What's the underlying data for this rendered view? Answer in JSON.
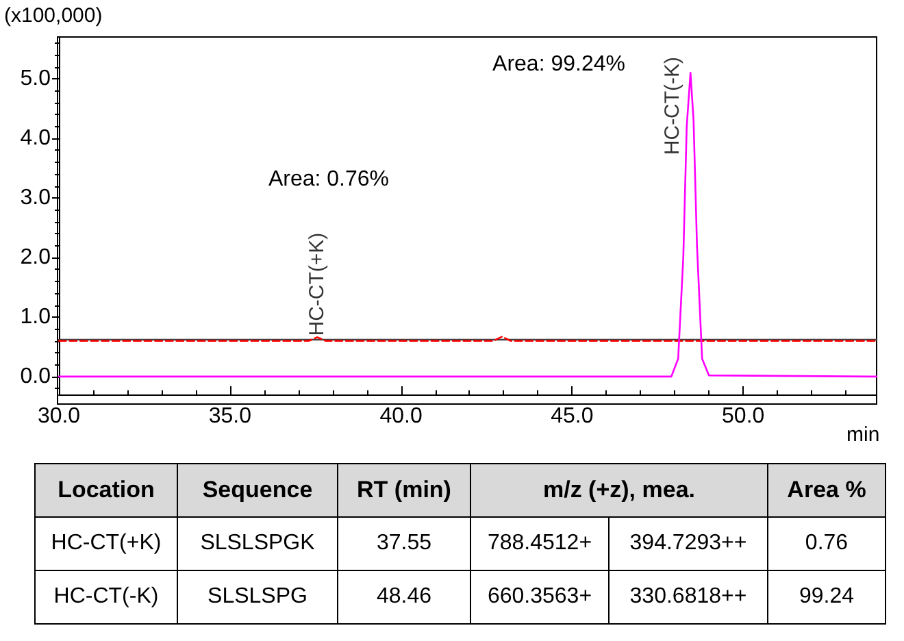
{
  "chart_data": [
    {
      "type": "line",
      "xlabel": "min",
      "ylabel": "(x100,000)",
      "xlim": [
        30,
        53.9
      ],
      "ylim": [
        -0.3,
        5.7
      ],
      "xticks": [
        {
          "value": 30,
          "label": "30.0"
        },
        {
          "value": 35,
          "label": "35.0"
        },
        {
          "value": 40,
          "label": "40.0"
        },
        {
          "value": 45,
          "label": "45.0"
        },
        {
          "value": 50,
          "label": "50.0"
        }
      ],
      "yticks": [
        {
          "value": 0,
          "label": "0.0"
        },
        {
          "value": 1,
          "label": "1.0"
        },
        {
          "value": 2,
          "label": "2.0"
        },
        {
          "value": 3,
          "label": "3.0"
        },
        {
          "value": 4,
          "label": "4.0"
        },
        {
          "value": 5,
          "label": "5.0"
        }
      ],
      "series": [
        {
          "color": "#404040",
          "line_style": "solid",
          "x": [
            30,
            53.9
          ],
          "values": [
            0.62,
            0.62
          ]
        },
        {
          "color": "#ff0000",
          "line_style": "dashed",
          "x": [
            30,
            37.3,
            37.55,
            37.8,
            42.7,
            42.95,
            43.2,
            53.9
          ],
          "values": [
            0.6,
            0.6,
            0.66,
            0.6,
            0.6,
            0.67,
            0.6,
            0.6
          ]
        },
        {
          "color": "#ff00ff",
          "line_style": "solid",
          "x": [
            30,
            47.9,
            48.1,
            48.25,
            48.35,
            48.46,
            48.55,
            48.65,
            48.8,
            49.0,
            53.9
          ],
          "values": [
            0,
            0,
            0.3,
            2.0,
            4.2,
            5.1,
            4.3,
            2.2,
            0.3,
            0.02,
            0
          ]
        }
      ],
      "annotations": [
        "Area: 0.76%",
        {
          "text": "HC-CT(+K)",
          "x": 37.55,
          "y": 0.66
        },
        "Area: 99.24%",
        {
          "text": "HC-CT(-K)",
          "x": 48.46,
          "y": 5.1
        }
      ],
      "grid": false,
      "marker": "none"
    },
    {
      "type": "other",
      "categories": [
        "Location",
        "Sequence",
        "RT (min)",
        "m/z (+z), mea.",
        "Area %"
      ],
      "annotations": [
        "HC-CT(+K)",
        "SLSLSPGK",
        "37.55",
        "788.4512+",
        "394.7293++",
        "0.76",
        "HC-CT(-K)",
        "SLSLSPG",
        "48.46",
        "660.3563+",
        "330.6818++",
        "99.24"
      ]
    }
  ]
}
